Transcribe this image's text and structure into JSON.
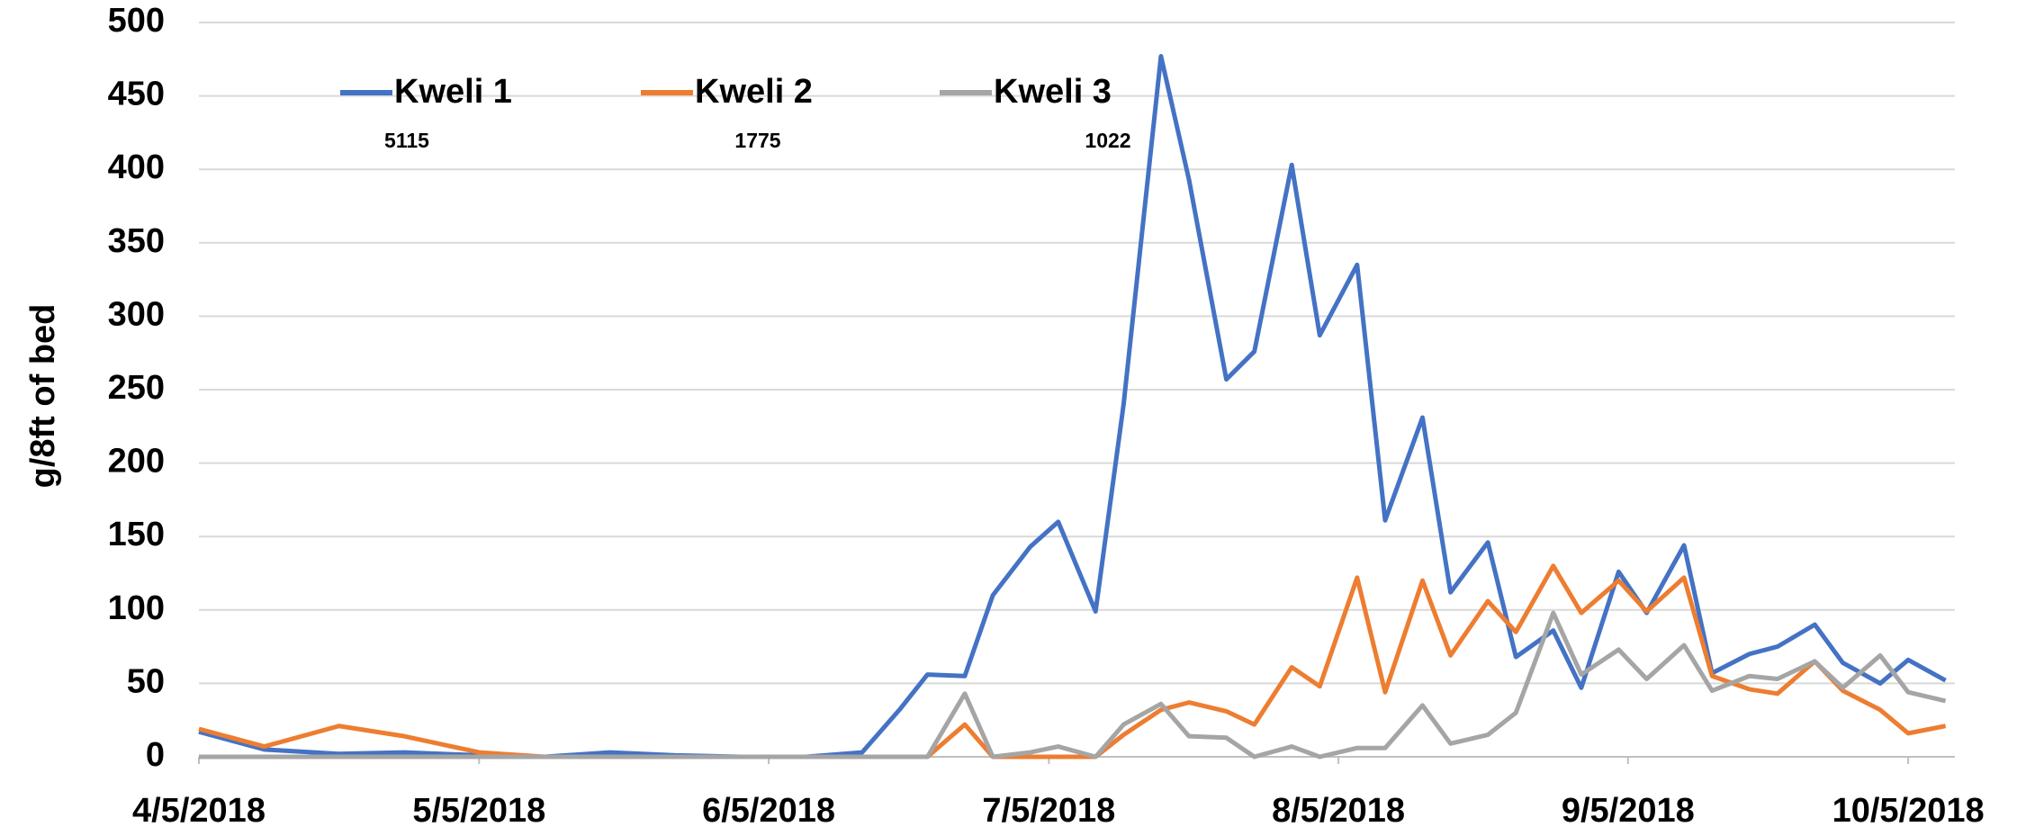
{
  "chart_data": {
    "type": "line",
    "y_label": "g/8ft of bed",
    "x": [
      "2018-04-05",
      "2018-04-12",
      "2018-04-20",
      "2018-04-27",
      "2018-05-05",
      "2018-05-12",
      "2018-05-19",
      "2018-05-26",
      "2018-06-02",
      "2018-06-09",
      "2018-06-15",
      "2018-06-19",
      "2018-06-22",
      "2018-06-26",
      "2018-06-29",
      "2018-07-03",
      "2018-07-06",
      "2018-07-10",
      "2018-07-13",
      "2018-07-17",
      "2018-07-20",
      "2018-07-24",
      "2018-07-27",
      "2018-07-31",
      "2018-08-03",
      "2018-08-07",
      "2018-08-10",
      "2018-08-14",
      "2018-08-17",
      "2018-08-21",
      "2018-08-24",
      "2018-08-28",
      "2018-08-31",
      "2018-09-04",
      "2018-09-07",
      "2018-09-11",
      "2018-09-14",
      "2018-09-18",
      "2018-09-21",
      "2018-09-25",
      "2018-09-28",
      "2018-10-02",
      "2018-10-05",
      "2018-10-09"
    ],
    "series": [
      {
        "name": "Kweli 1",
        "color": "#4472c4",
        "values": [
          17,
          5,
          2,
          3,
          1,
          0,
          3,
          1,
          0,
          0,
          3,
          32,
          56,
          55,
          110,
          143,
          160,
          99,
          240,
          477,
          393,
          257,
          276,
          403,
          287,
          335,
          161,
          231,
          112,
          146,
          68,
          86,
          47,
          126,
          98,
          144,
          57,
          70,
          75,
          90,
          64,
          50,
          66,
          52
        ]
      },
      {
        "name": "Kweli 2",
        "color": "#ed7d31",
        "values": [
          19,
          7,
          21,
          14,
          3,
          0,
          0,
          0,
          0,
          0,
          0,
          0,
          0,
          22,
          0,
          0,
          0,
          0,
          15,
          32,
          37,
          31,
          22,
          61,
          48,
          122,
          44,
          120,
          69,
          106,
          85,
          130,
          98,
          120,
          99,
          122,
          55,
          46,
          43,
          65,
          45,
          32,
          16,
          21
        ]
      },
      {
        "name": "Kweli 3",
        "color": "#a5a5a5",
        "values": [
          0,
          0,
          0,
          0,
          0,
          0,
          0,
          0,
          0,
          0,
          0,
          0,
          0,
          43,
          0,
          3,
          7,
          0,
          22,
          36,
          14,
          13,
          0,
          7,
          0,
          6,
          6,
          35,
          9,
          15,
          30,
          98,
          56,
          73,
          53,
          76,
          45,
          55,
          53,
          65,
          47,
          69,
          44,
          38
        ]
      }
    ],
    "annotations": [
      "5115",
      "1775",
      "1022"
    ],
    "xlim": [
      "2018-04-05",
      "2018-10-10"
    ],
    "xticks": [
      {
        "value": "2018-04-05",
        "label": "4/5/2018"
      },
      {
        "value": "2018-05-05",
        "label": "5/5/2018"
      },
      {
        "value": "2018-06-05",
        "label": "6/5/2018"
      },
      {
        "value": "2018-07-05",
        "label": "7/5/2018"
      },
      {
        "value": "2018-08-05",
        "label": "8/5/2018"
      },
      {
        "value": "2018-09-05",
        "label": "9/5/2018"
      },
      {
        "value": "2018-10-05",
        "label": "10/5/2018"
      }
    ],
    "ylim": [
      0,
      500
    ],
    "yticks": [
      0,
      50,
      100,
      150,
      200,
      250,
      300,
      350,
      400,
      450,
      500
    ],
    "grid": true
  }
}
